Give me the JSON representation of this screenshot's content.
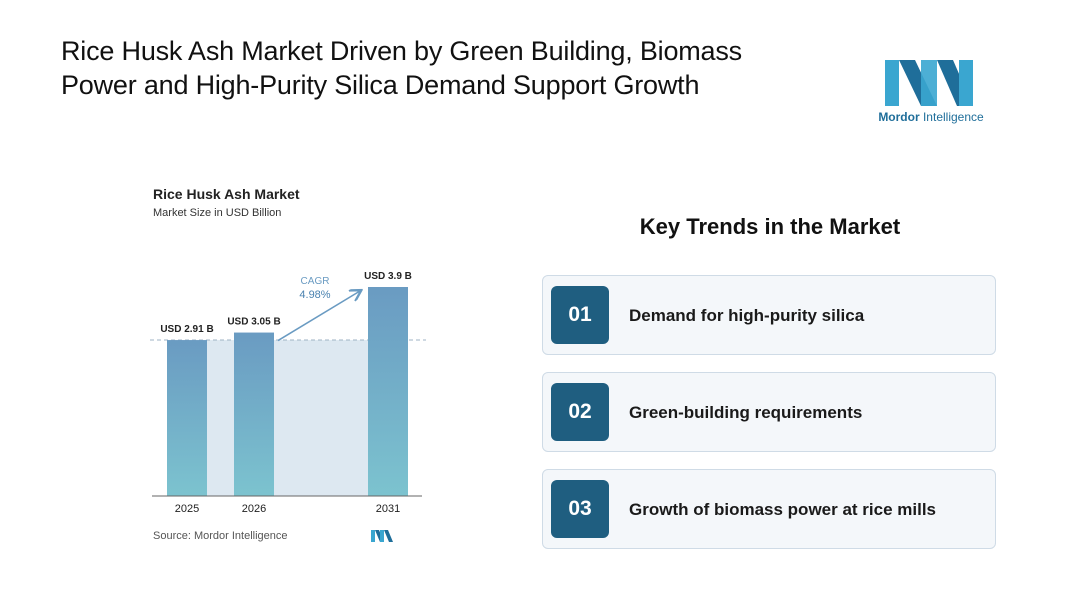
{
  "header": {
    "title_line1": "Rice Husk Ash Market Driven by Green Building, Biomass",
    "title_line2": "Power and High-Purity Silica Demand Support Growth"
  },
  "brand": {
    "name_bold": "Mordor",
    "name_rest": " Intelligence",
    "color": "#1f6e9a",
    "accent": "#3aa6d0"
  },
  "chart_data": {
    "type": "bar",
    "title": "Rice Husk Ash Market",
    "subtitle": "Market Size in USD Billion",
    "categories": [
      "2025",
      "2026",
      "2031"
    ],
    "values": [
      2.91,
      3.05,
      3.9
    ],
    "data_labels": [
      "USD 2.91 B",
      "USD 3.05 B",
      "USD 3.9 B"
    ],
    "cagr_label": "CAGR",
    "cagr_value": "4.98%",
    "ylim": [
      0,
      3.9
    ],
    "grid": false,
    "colors": {
      "bar_top": "#6a9bc2",
      "bar_bottom": "#7cc3cf",
      "band": "#dde8f1",
      "arrow": "#6a9bc2",
      "dash": "#9fb3c4"
    }
  },
  "source": "Source: Mordor Intelligence",
  "trends": {
    "title": "Key Trends in the Market",
    "items": [
      {
        "num": "01",
        "text": "Demand for high-purity silica"
      },
      {
        "num": "02",
        "text": "Green-building requirements"
      },
      {
        "num": "03",
        "text": "Growth of biomass power at rice mills"
      }
    ]
  }
}
